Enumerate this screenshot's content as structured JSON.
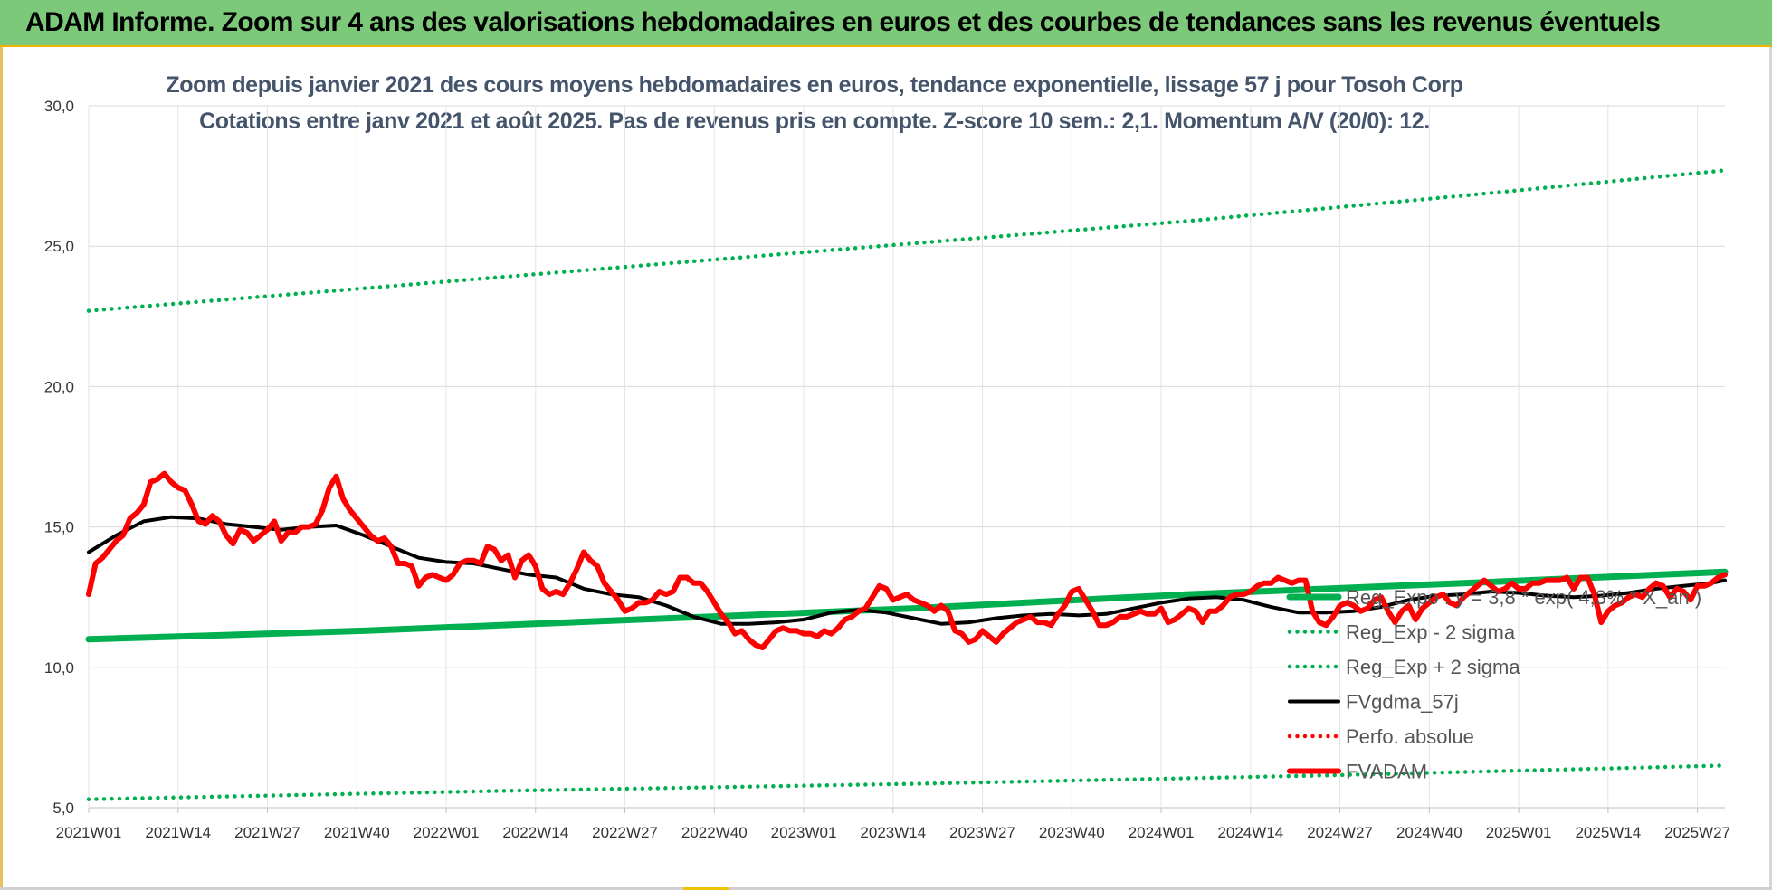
{
  "banner": {
    "title": "ADAM Informe. Zoom sur 4 ans des valorisations hebdomadaires en euros et des courbes de tendances sans les revenus éventuels"
  },
  "colors": {
    "banner": "#7dc97a",
    "trend": "#00b050",
    "smoothing": "#000000",
    "price": "#ff0000",
    "perfo": "#ff0000"
  },
  "chart_data": {
    "type": "line",
    "title": "Zoom depuis janvier 2021 des cours moyens hebdomadaires en euros, tendance exponentielle, lissage 57 j pour Tosoh Corp",
    "subtitle": "Cotations entre janv 2021 et août 2025.  Pas de revenus pris en compte. Z-score 10 sem.: 2,1. Momentum A/V (20/0): 12.",
    "xlabel": "",
    "ylabel": "",
    "ylim": [
      5,
      30
    ],
    "yticks": [
      "5,0",
      "10,0",
      "15,0",
      "20,0",
      "25,0",
      "30,0"
    ],
    "x_ticks": [
      "2021W01",
      "2021W14",
      "2021W27",
      "2021W40",
      "2022W01",
      "2022W14",
      "2022W27",
      "2022W40",
      "2023W01",
      "2023W14",
      "2023W27",
      "2023W40",
      "2024W01",
      "2024W14",
      "2024W27",
      "2024W40",
      "2025W01",
      "2025W14",
      "2025W27"
    ],
    "grid": true,
    "legend_position": "bottom-right",
    "x_range_weeks": [
      0,
      238
    ],
    "series": [
      {
        "name": "Reg_Expo : y = 3,8 * exp( 4,3% * X_an )",
        "style": "solid-thick",
        "color": "#00b050",
        "x": [
          0,
          40,
          80,
          120,
          160,
          200,
          238
        ],
        "values": [
          11.0,
          11.3,
          11.7,
          12.1,
          12.6,
          13.0,
          13.4
        ]
      },
      {
        "name": "Reg_Exp - 2 sigma",
        "style": "dotted",
        "color": "#00b050",
        "x": [
          0,
          60,
          120,
          180,
          238
        ],
        "values": [
          5.3,
          5.6,
          5.85,
          6.15,
          6.5
        ]
      },
      {
        "name": "Reg_Exp + 2 sigma",
        "style": "dotted",
        "color": "#00b050",
        "x": [
          0,
          40,
          80,
          120,
          160,
          200,
          238
        ],
        "values": [
          22.7,
          23.5,
          24.3,
          25.1,
          25.9,
          26.8,
          27.7
        ]
      },
      {
        "name": "FVgdma_57j",
        "style": "solid",
        "color": "#000000",
        "x": [
          0,
          4,
          8,
          12,
          16,
          20,
          24,
          28,
          32,
          36,
          40,
          44,
          48,
          52,
          56,
          60,
          64,
          68,
          72,
          76,
          80,
          84,
          88,
          92,
          96,
          100,
          104,
          108,
          112,
          116,
          120,
          124,
          128,
          132,
          136,
          140,
          144,
          148,
          152,
          156,
          160,
          164,
          168,
          172,
          176,
          180,
          184,
          188,
          192,
          196,
          200,
          204,
          208,
          212,
          216,
          220,
          224,
          228,
          232,
          236,
          238
        ],
        "values": [
          14.1,
          14.7,
          15.2,
          15.35,
          15.3,
          15.1,
          15.0,
          14.9,
          15.0,
          15.05,
          14.7,
          14.3,
          13.9,
          13.75,
          13.7,
          13.5,
          13.3,
          13.2,
          12.8,
          12.6,
          12.5,
          12.2,
          11.8,
          11.55,
          11.55,
          11.6,
          11.7,
          11.95,
          12.05,
          11.95,
          11.75,
          11.55,
          11.6,
          11.75,
          11.85,
          11.9,
          11.85,
          11.9,
          12.1,
          12.3,
          12.45,
          12.5,
          12.4,
          12.15,
          11.95,
          11.95,
          12.0,
          12.15,
          12.4,
          12.55,
          12.6,
          12.7,
          12.65,
          12.55,
          12.5,
          12.55,
          12.65,
          12.8,
          12.9,
          13.0,
          13.1
        ]
      },
      {
        "name": "Perfo. absolue",
        "style": "dotted",
        "color": "#ff0000",
        "x": [],
        "values": []
      },
      {
        "name": "FVADAM",
        "style": "solid-thick",
        "color": "#ff0000",
        "x": [
          0,
          1,
          2,
          3,
          4,
          5,
          6,
          7,
          8,
          9,
          10,
          11,
          12,
          13,
          14,
          15,
          16,
          17,
          18,
          19,
          20,
          21,
          22,
          23,
          24,
          25,
          26,
          27,
          28,
          29,
          30,
          31,
          32,
          33,
          34,
          35,
          36,
          37,
          38,
          39,
          40,
          41,
          42,
          43,
          44,
          45,
          46,
          47,
          48,
          49,
          50,
          51,
          52,
          53,
          54,
          55,
          56,
          57,
          58,
          59,
          60,
          61,
          62,
          63,
          64,
          65,
          66,
          67,
          68,
          69,
          70,
          71,
          72,
          73,
          74,
          75,
          76,
          77,
          78,
          79,
          80,
          81,
          82,
          83,
          84,
          85,
          86,
          87,
          88,
          89,
          90,
          91,
          92,
          93,
          94,
          95,
          96,
          97,
          98,
          99,
          100,
          101,
          102,
          103,
          104,
          105,
          106,
          107,
          108,
          109,
          110,
          111,
          112,
          113,
          114,
          115,
          116,
          117,
          118,
          119,
          120,
          121,
          122,
          123,
          124,
          125,
          126,
          127,
          128,
          129,
          130,
          131,
          132,
          133,
          134,
          135,
          136,
          137,
          138,
          139,
          140,
          141,
          142,
          143,
          144,
          145,
          146,
          147,
          148,
          149,
          150,
          151,
          152,
          153,
          154,
          155,
          156,
          157,
          158,
          159,
          160,
          161,
          162,
          163,
          164,
          165,
          166,
          167,
          168,
          169,
          170,
          171,
          172,
          173,
          174,
          175,
          176,
          177,
          178,
          179,
          180,
          181,
          182,
          183,
          184,
          185,
          186,
          187,
          188,
          189,
          190,
          191,
          192,
          193,
          194,
          195,
          196,
          197,
          198,
          199,
          200,
          201,
          202,
          203,
          204,
          205,
          206,
          207,
          208,
          209,
          210,
          211,
          212,
          213,
          214,
          215,
          216,
          217,
          218,
          219,
          220,
          221,
          222,
          223,
          224,
          225,
          226,
          227,
          228,
          229,
          230,
          231,
          232,
          233,
          234,
          235,
          236,
          237,
          238
        ],
        "values": [
          12.6,
          13.7,
          13.9,
          14.2,
          14.5,
          14.7,
          15.3,
          15.5,
          15.8,
          16.6,
          16.7,
          16.9,
          16.6,
          16.4,
          16.3,
          15.8,
          15.2,
          15.1,
          15.4,
          15.2,
          14.7,
          14.4,
          14.9,
          14.8,
          14.5,
          14.7,
          14.9,
          15.2,
          14.5,
          14.8,
          14.8,
          15.0,
          15.0,
          15.1,
          15.6,
          16.4,
          16.8,
          16.0,
          15.6,
          15.3,
          15.0,
          14.7,
          14.5,
          14.6,
          14.3,
          13.7,
          13.7,
          13.6,
          12.9,
          13.2,
          13.3,
          13.2,
          13.1,
          13.3,
          13.7,
          13.8,
          13.8,
          13.7,
          14.3,
          14.2,
          13.8,
          14.0,
          13.2,
          13.8,
          14.0,
          13.6,
          12.8,
          12.6,
          12.7,
          12.6,
          13.0,
          13.5,
          14.1,
          13.8,
          13.6,
          13.0,
          12.7,
          12.4,
          12.0,
          12.1,
          12.3,
          12.3,
          12.4,
          12.7,
          12.6,
          12.7,
          13.2,
          13.2,
          13.0,
          13.0,
          12.7,
          12.3,
          11.9,
          11.6,
          11.2,
          11.3,
          11.0,
          10.8,
          10.7,
          11.0,
          11.3,
          11.4,
          11.3,
          11.3,
          11.2,
          11.2,
          11.1,
          11.3,
          11.2,
          11.4,
          11.7,
          11.8,
          12.0,
          12.1,
          12.5,
          12.9,
          12.8,
          12.4,
          12.5,
          12.6,
          12.4,
          12.3,
          12.2,
          12.0,
          12.2,
          12.0,
          11.3,
          11.2,
          10.9,
          11.0,
          11.3,
          11.1,
          10.9,
          11.2,
          11.4,
          11.6,
          11.7,
          11.8,
          11.6,
          11.6,
          11.5,
          11.9,
          12.2,
          12.7,
          12.8,
          12.4,
          12.0,
          11.5,
          11.5,
          11.6,
          11.8,
          11.8,
          11.9,
          12.0,
          11.9,
          11.9,
          12.1,
          11.6,
          11.7,
          11.9,
          12.1,
          12.0,
          11.6,
          12.0,
          12.0,
          12.2,
          12.5,
          12.6,
          12.6,
          12.7,
          12.9,
          13.0,
          13.0,
          13.2,
          13.1,
          13.0,
          13.1,
          13.1,
          12.0,
          11.6,
          11.5,
          11.8,
          12.2,
          12.3,
          12.2,
          12.0,
          12.1,
          12.4,
          12.5,
          12.0,
          11.6,
          12.0,
          12.2,
          11.7,
          12.1,
          12.3,
          12.5,
          12.6,
          12.3,
          12.2,
          12.5,
          12.7,
          12.9,
          13.1,
          12.9,
          12.7,
          12.8,
          13.0,
          12.8,
          12.8,
          13.0,
          13.0,
          13.1,
          13.1,
          13.1,
          13.2,
          12.8,
          13.2,
          13.2,
          12.6,
          11.6,
          12.0,
          12.2,
          12.3,
          12.5,
          12.6,
          12.5,
          12.8,
          13.0,
          12.9,
          12.5,
          12.8,
          12.7,
          12.4,
          12.9,
          12.9,
          13.0,
          13.2,
          13.3
        ]
      }
    ]
  }
}
